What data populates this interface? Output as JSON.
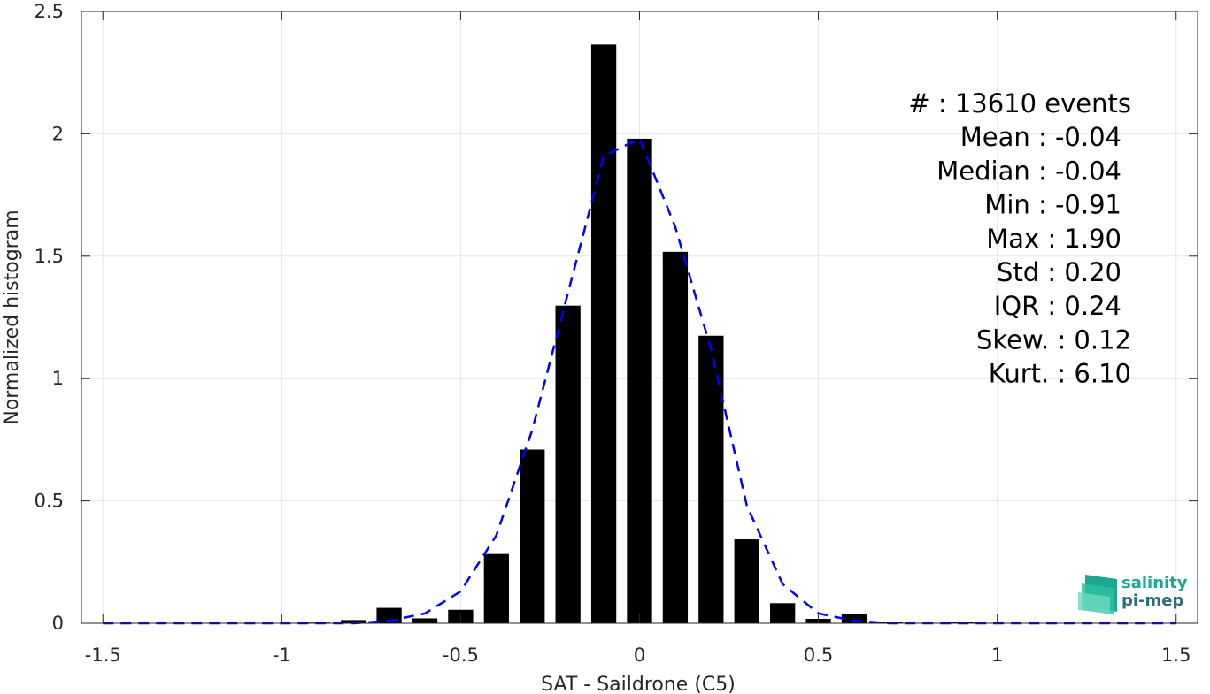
{
  "chart_data": {
    "type": "bar",
    "xlabel": "SAT - Saildrone (C5)",
    "ylabel": "Normalized histogram",
    "xlim": [
      -1.56,
      1.56
    ],
    "ylim": [
      0,
      2.5
    ],
    "grid": true,
    "x_ticks": [
      -1.5,
      -1,
      -0.5,
      0,
      0.5,
      1,
      1.5
    ],
    "x_tick_labels": [
      "-1.5",
      "-1",
      "-0.5",
      "0",
      "0.5",
      "1",
      "1.5"
    ],
    "y_ticks": [
      0,
      0.5,
      1,
      1.5,
      2,
      2.5
    ],
    "y_tick_labels": [
      "0",
      "0.5",
      "1",
      "1.5",
      "2",
      "2.5"
    ],
    "bar_color": "#000000",
    "bars": {
      "x": [
        -1.5,
        -1.4,
        -1.3,
        -1.2,
        -1.1,
        -1.0,
        -0.9,
        -0.8,
        -0.7,
        -0.6,
        -0.5,
        -0.4,
        -0.3,
        -0.2,
        -0.1,
        0.0,
        0.1,
        0.2,
        0.3,
        0.4,
        0.5,
        0.6,
        0.7,
        0.8,
        0.9,
        1.0,
        1.1,
        1.2,
        1.3,
        1.4,
        1.5
      ],
      "values": [
        0,
        0,
        0,
        0,
        0,
        0,
        0.003,
        0.013,
        0.063,
        0.02,
        0.055,
        0.283,
        0.71,
        1.298,
        2.365,
        1.98,
        1.518,
        1.175,
        0.343,
        0.082,
        0.018,
        0.036,
        0.007,
        0.002,
        0.004,
        0.001,
        0.001,
        0.001,
        0,
        0,
        0
      ]
    },
    "fit_line": {
      "style": "dashed",
      "color": "#0000ff",
      "x": [
        -1.5,
        -1.4,
        -1.3,
        -1.2,
        -1.1,
        -1.0,
        -0.9,
        -0.8,
        -0.7,
        -0.6,
        -0.5,
        -0.4,
        -0.3,
        -0.2,
        -0.1,
        0.0,
        0.1,
        0.2,
        0.3,
        0.4,
        0.5,
        0.6,
        0.7,
        0.8,
        0.9,
        1.0,
        1.1,
        1.2,
        1.3,
        1.4,
        1.5
      ],
      "values": [
        0,
        0,
        0,
        0,
        0,
        0,
        0,
        0,
        0.01,
        0.04,
        0.13,
        0.36,
        0.79,
        1.35,
        1.91,
        1.98,
        1.62,
        1.12,
        0.48,
        0.16,
        0.04,
        0.01,
        0,
        0,
        0,
        0,
        0,
        0,
        0,
        0,
        0
      ]
    },
    "annotations": [
      "#  : 13610 events",
      "Mean : -0.04",
      "Median : -0.04",
      "Min : -0.91",
      "Max : 1.90",
      "Std : 0.20",
      "IQR : 0.24",
      "Skew. : 0.12",
      "Kurt. : 6.10"
    ]
  },
  "logo": {
    "line1": "salinity",
    "line2": "pi-mep",
    "color1": "#1aa88e",
    "color2": "#2a6e7a"
  }
}
